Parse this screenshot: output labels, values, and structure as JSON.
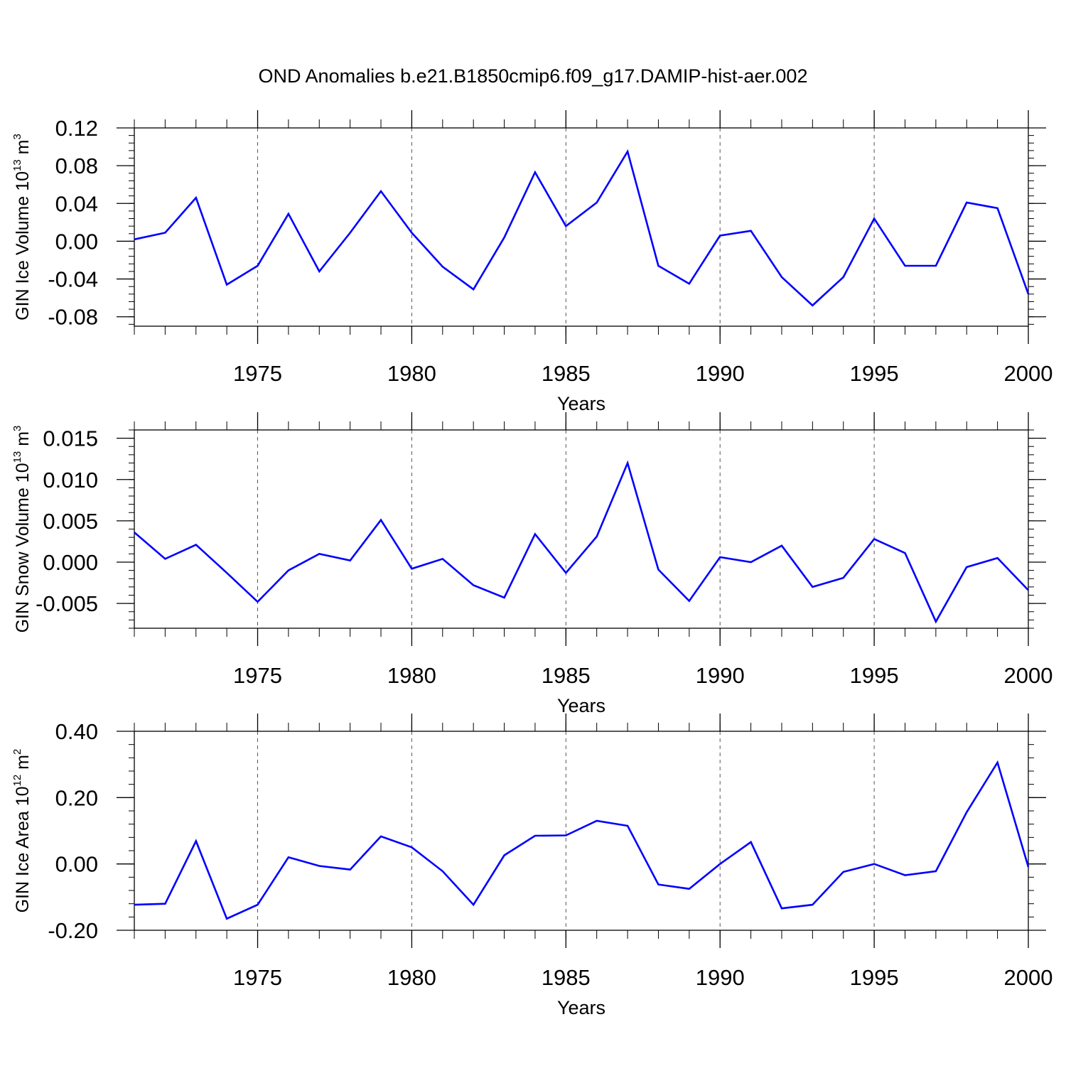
{
  "figure": {
    "title": "OND Anomalies b.e21.B1850cmip6.f09_g17.DAMIP-hist-aer.002",
    "line_color": "#0000ff",
    "grid_style": "dashed vertical lines at 5-year ticks"
  },
  "chart_data": [
    {
      "type": "line",
      "ylabel": "GIN Ice Volume 10",
      "ylabel_exp": "13",
      "ylabel_unit": " m",
      "ylabel_unit_exp": "3",
      "xlabel": "Years",
      "xlim": [
        1971,
        2000
      ],
      "ylim": [
        -0.09,
        0.12
      ],
      "yticks": [
        -0.08,
        -0.04,
        0.0,
        0.04,
        0.08,
        0.12
      ],
      "ytick_labels": [
        "-0.08",
        "-0.04",
        "0.00",
        "0.04",
        "0.08",
        "0.12"
      ],
      "xticks": [
        1975,
        1980,
        1985,
        1990,
        1995,
        2000
      ],
      "xtick_labels": [
        "1975",
        "1980",
        "1985",
        "1990",
        "1995",
        "2000"
      ],
      "grid": "vertical dashed at major x ticks",
      "series": [
        {
          "x": [
            1971,
            1972,
            1973,
            1974,
            1975,
            1976,
            1977,
            1978,
            1979,
            1980,
            1981,
            1982,
            1983,
            1984,
            1985,
            1986,
            1987,
            1988,
            1989,
            1990,
            1991,
            1992,
            1993,
            1994,
            1995,
            1996,
            1997,
            1998,
            1999,
            2000
          ],
          "values": [
            0.002,
            0.009,
            0.046,
            -0.046,
            -0.026,
            0.029,
            -0.032,
            0.009,
            0.053,
            0.009,
            -0.027,
            -0.051,
            0.004,
            0.073,
            0.016,
            0.041,
            0.095,
            -0.026,
            -0.045,
            0.006,
            0.011,
            -0.038,
            -0.068,
            -0.038,
            0.024,
            -0.026,
            -0.026,
            0.041,
            0.035,
            -0.056
          ]
        }
      ]
    },
    {
      "type": "line",
      "ylabel": "GIN Snow Volume 10",
      "ylabel_exp": "13",
      "ylabel_unit": " m",
      "ylabel_unit_exp": "3",
      "xlabel": "Years",
      "xlim": [
        1971,
        2000
      ],
      "ylim": [
        -0.008,
        0.016
      ],
      "yticks": [
        -0.005,
        0.0,
        0.005,
        0.01,
        0.015
      ],
      "ytick_labels": [
        "-0.005",
        "0.000",
        "0.005",
        "0.010",
        "0.015"
      ],
      "xticks": [
        1975,
        1980,
        1985,
        1990,
        1995,
        2000
      ],
      "xtick_labels": [
        "1975",
        "1980",
        "1985",
        "1990",
        "1995",
        "2000"
      ],
      "grid": "vertical dashed at major x ticks",
      "series": [
        {
          "x": [
            1971,
            1972,
            1973,
            1974,
            1975,
            1976,
            1977,
            1978,
            1979,
            1980,
            1981,
            1982,
            1983,
            1984,
            1985,
            1986,
            1987,
            1988,
            1989,
            1990,
            1991,
            1992,
            1993,
            1994,
            1995,
            1996,
            1997,
            1998,
            1999,
            2000
          ],
          "values": [
            0.0036,
            0.0004,
            0.0021,
            -0.0013,
            -0.0048,
            -0.001,
            0.001,
            0.0002,
            0.0051,
            -0.0008,
            0.0004,
            -0.0028,
            -0.0043,
            0.0034,
            -0.0013,
            0.0031,
            0.012,
            -0.0009,
            -0.0047,
            0.0006,
            0.0,
            0.002,
            -0.003,
            -0.0019,
            0.0028,
            0.0011,
            -0.0072,
            -0.0006,
            0.0005,
            -0.0034
          ]
        }
      ]
    },
    {
      "type": "line",
      "ylabel": "GIN Ice Area 10",
      "ylabel_exp": "12",
      "ylabel_unit": " m",
      "ylabel_unit_exp": "2",
      "xlabel": "Years",
      "xlim": [
        1971,
        2000
      ],
      "ylim": [
        -0.2,
        0.4
      ],
      "yticks": [
        -0.2,
        0.0,
        0.2,
        0.4
      ],
      "ytick_labels": [
        "-0.20",
        "0.00",
        "0.20",
        "0.40"
      ],
      "xticks": [
        1975,
        1980,
        1985,
        1990,
        1995,
        2000
      ],
      "xtick_labels": [
        "1975",
        "1980",
        "1985",
        "1990",
        "1995",
        "2000"
      ],
      "grid": "vertical dashed at major x ticks",
      "series": [
        {
          "x": [
            1971,
            1972,
            1973,
            1974,
            1975,
            1976,
            1977,
            1978,
            1979,
            1980,
            1981,
            1982,
            1983,
            1984,
            1985,
            1986,
            1987,
            1988,
            1989,
            1990,
            1991,
            1992,
            1993,
            1994,
            1995,
            1996,
            1997,
            1998,
            1999,
            2000
          ],
          "values": [
            -0.123,
            -0.12,
            0.069,
            -0.165,
            -0.123,
            0.02,
            -0.006,
            -0.017,
            0.083,
            0.05,
            -0.022,
            -0.123,
            0.026,
            0.085,
            0.086,
            0.13,
            0.115,
            -0.062,
            -0.075,
            0.0,
            0.066,
            -0.134,
            -0.123,
            -0.024,
            0.0,
            -0.034,
            -0.022,
            0.156,
            0.306,
            -0.009
          ]
        }
      ]
    }
  ]
}
